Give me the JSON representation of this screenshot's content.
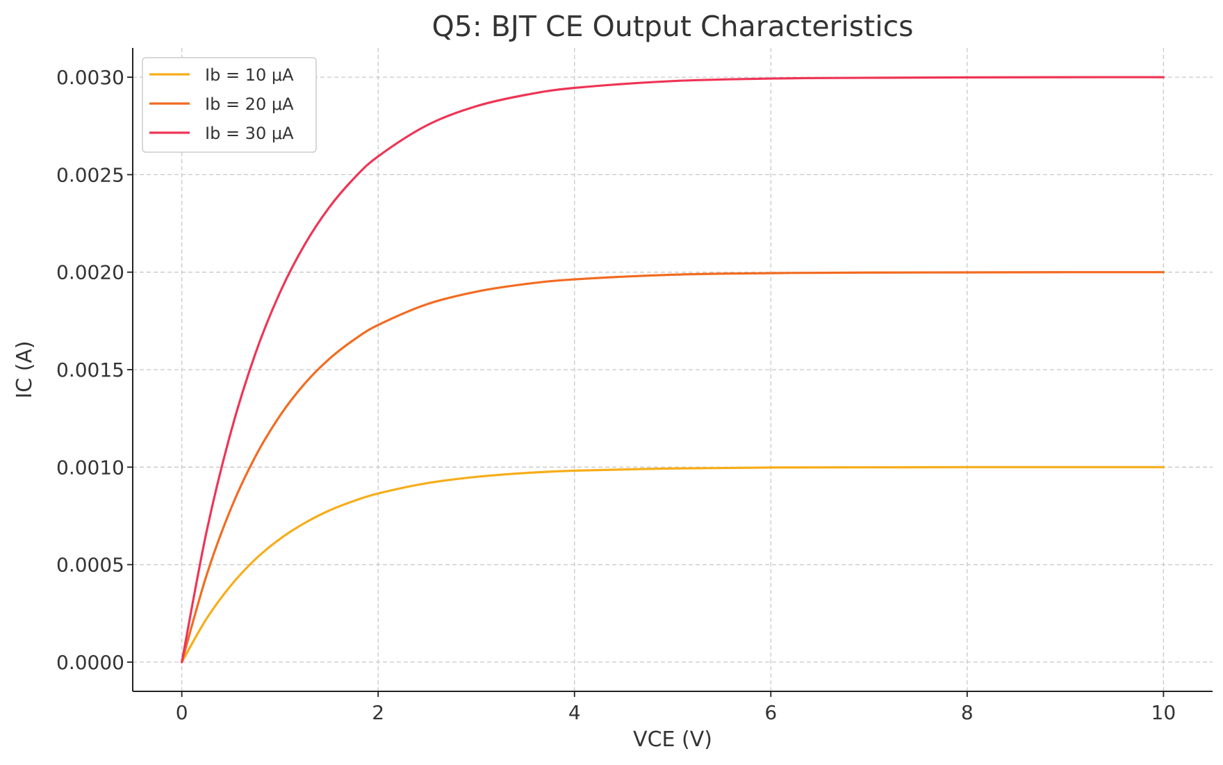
{
  "chart_data": {
    "type": "line",
    "title": "Q5: BJT CE Output Characteristics",
    "xlabel": "VCE (V)",
    "ylabel": "IC (A)",
    "xlim": [
      -0.5,
      10.5
    ],
    "ylim": [
      -0.00015,
      0.00315
    ],
    "xticks": [
      0,
      2,
      4,
      6,
      8,
      10
    ],
    "xtick_labels": [
      "0",
      "2",
      "4",
      "6",
      "8",
      "10"
    ],
    "yticks": [
      0.0,
      0.0005,
      0.001,
      0.0015,
      0.002,
      0.0025,
      0.003
    ],
    "ytick_labels": [
      "0.0000",
      "0.0005",
      "0.0010",
      "0.0015",
      "0.0020",
      "0.0025",
      "0.0030"
    ],
    "grid": true,
    "legend_position": "top-left",
    "x": [
      0,
      0.25,
      0.5,
      0.75,
      1,
      1.25,
      1.5,
      1.75,
      2,
      2.5,
      3,
      3.5,
      4,
      5,
      6,
      7,
      8,
      9,
      10
    ],
    "series": [
      {
        "name": "Ib = 10 μA",
        "color": "#f7ad19",
        "values": [
          0,
          0.000221,
          0.000393,
          0.000528,
          0.000632,
          0.000713,
          0.000777,
          0.000826,
          0.000865,
          0.000918,
          0.00095,
          0.00097,
          0.000982,
          0.000993,
          0.000998,
          0.000999,
          0.001,
          0.001,
          0.001
        ]
      },
      {
        "name": "Ib = 20 μA",
        "color": "#f26b21",
        "values": [
          0,
          0.000442,
          0.000787,
          0.001055,
          0.001264,
          0.001427,
          0.001554,
          0.001652,
          0.001729,
          0.001836,
          0.0019,
          0.001939,
          0.001963,
          0.001987,
          0.001995,
          0.001998,
          0.001999,
          0.002,
          0.002
        ]
      },
      {
        "name": "Ib = 30 μA",
        "color": "#ee3455",
        "values": [
          0,
          0.000664,
          0.00118,
          0.001583,
          0.001896,
          0.00214,
          0.002331,
          0.002479,
          0.002594,
          0.002754,
          0.002851,
          0.002909,
          0.002945,
          0.00298,
          0.002993,
          0.002997,
          0.002999,
          0.003,
          0.003
        ]
      }
    ]
  }
}
